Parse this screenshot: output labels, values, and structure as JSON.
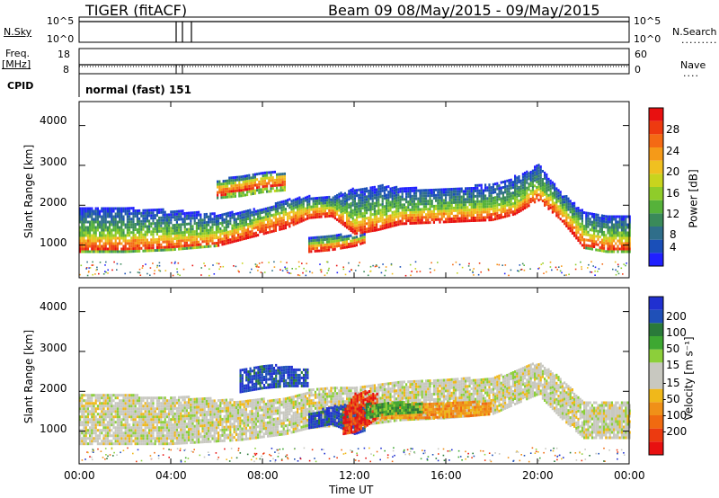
{
  "header": {
    "station_title": "TIGER (fitACF)",
    "beam_date": "Beam 09  08/May/2015 - 09/May/2015"
  },
  "summary_panels": {
    "nsky": {
      "label": "N.Sky",
      "ticks": [
        "10^5",
        "10^0"
      ],
      "ticks_right": [
        "10^5",
        "10^0"
      ],
      "right_label": "N.Search"
    },
    "freq": {
      "label_lines": [
        "Freq.",
        "[MHz]"
      ],
      "ticks": [
        "18",
        "8"
      ],
      "ticks_right": [
        "60",
        "0"
      ],
      "right_label": "Nave"
    },
    "cpid": {
      "label": "CPID",
      "mode_text": "normal (fast) 151"
    }
  },
  "colorbars": {
    "power": {
      "label": "Power [dB]",
      "ticks": [
        "28",
        "24",
        "20",
        "16",
        "12",
        "8",
        "4"
      ],
      "colors": [
        "#2020ff",
        "#1a4fb8",
        "#2f6e8a",
        "#3a8a5a",
        "#56b23a",
        "#8fcc2a",
        "#c8d41e",
        "#f0c020",
        "#f59a18",
        "#f46a14",
        "#ee3a10",
        "#e81010"
      ]
    },
    "velocity": {
      "label": "Velocity [m s⁻¹]",
      "ticks": [
        "200",
        "100",
        "50",
        "15",
        "-15",
        "-50",
        "-100",
        "-200"
      ],
      "colors": [
        "#2030d0",
        "#1f50b8",
        "#2a7a3a",
        "#3ea832",
        "#8ccf3a",
        "#c8c8c0",
        "#c8c8c0",
        "#f0b81a",
        "#f09018",
        "#f06a10",
        "#ec3a10",
        "#e81010"
      ]
    }
  },
  "chart_data": [
    {
      "type": "heatmap",
      "panel": "power",
      "ylabel": "Slant Range [km]",
      "yticks": [
        "4000",
        "3000",
        "2000",
        "1000"
      ],
      "ylim": [
        180,
        4600
      ],
      "xlim": [
        0,
        24
      ],
      "bands": [
        {
          "x": [
            0,
            2,
            4,
            6,
            8,
            9,
            10,
            11,
            12,
            13,
            14,
            16,
            18,
            19,
            20,
            21,
            22,
            23,
            24
          ],
          "lower": [
            800,
            800,
            850,
            950,
            1250,
            1400,
            1650,
            1700,
            1250,
            1350,
            1500,
            1550,
            1600,
            1750,
            2100,
            1600,
            900,
            800,
            800
          ],
          "upper": [
            1900,
            1900,
            1850,
            1750,
            1900,
            2100,
            2200,
            2200,
            2400,
            2500,
            2400,
            2400,
            2500,
            2700,
            3000,
            2300,
            1800,
            1700,
            1700
          ],
          "core_lower": [
            800,
            820,
            860,
            950,
            1250,
            1400,
            1650,
            1700,
            1250,
            1350,
            1500,
            1550,
            1600,
            1750,
            2100,
            1600,
            900,
            820,
            800
          ],
          "core_upper": [
            1200,
            1200,
            1200,
            1250,
            1600,
            1800,
            1900,
            1900,
            1600,
            1700,
            1800,
            1850,
            1900,
            2000,
            2400,
            1900,
            1300,
            1150,
            1150
          ]
        },
        {
          "x": [
            10,
            11,
            12,
            12.5
          ],
          "lower": [
            800,
            850,
            950,
            1050
          ],
          "upper": [
            1150,
            1250,
            1200,
            1250
          ],
          "core_lower": [
            800,
            850,
            950,
            1050
          ],
          "core_upper": [
            1000,
            1050,
            1100,
            1150
          ]
        },
        {
          "x": [
            6,
            7,
            8,
            9
          ],
          "lower": [
            2150,
            2200,
            2300,
            2350
          ],
          "upper": [
            2600,
            2700,
            2800,
            2800
          ],
          "core_lower": [
            2200,
            2300,
            2400,
            2450
          ],
          "core_upper": [
            2450,
            2550,
            2650,
            2700
          ]
        }
      ]
    },
    {
      "type": "heatmap",
      "panel": "velocity",
      "ylabel": "Slant Range [km]",
      "yticks": [
        "4000",
        "3000",
        "2000",
        "1000"
      ],
      "ylim": [
        180,
        4600
      ],
      "xlim": [
        0,
        24
      ],
      "xticks": [
        "00:00",
        "04:00",
        "08:00",
        "12:00",
        "16:00",
        "20:00",
        "00:00"
      ],
      "xlabel": "Time UT",
      "regions": [
        {
          "x": [
            0,
            4,
            7,
            9,
            10,
            11,
            12,
            14,
            16,
            18,
            20,
            21,
            22,
            24
          ],
          "lower": [
            650,
            650,
            750,
            900,
            1050,
            1100,
            1100,
            1250,
            1300,
            1400,
            1900,
            1300,
            800,
            800
          ],
          "upper": [
            1900,
            1850,
            1750,
            1800,
            2000,
            2100,
            2100,
            2200,
            2300,
            2300,
            2700,
            2300,
            1700,
            1700
          ],
          "tone": "low"
        },
        {
          "x": [
            7,
            8,
            9,
            10
          ],
          "lower": [
            1950,
            2050,
            2100,
            2100
          ],
          "upper": [
            2500,
            2650,
            2600,
            2500
          ],
          "tone": "pos"
        },
        {
          "x": [
            10,
            11,
            12,
            12.5
          ],
          "lower": [
            1050,
            1150,
            900,
            1000
          ],
          "upper": [
            1400,
            1600,
            1650,
            1600
          ],
          "tone": "pos"
        },
        {
          "x": [
            11.5,
            12,
            12.5,
            13
          ],
          "lower": [
            900,
            950,
            1100,
            1300
          ],
          "upper": [
            1500,
            1900,
            2000,
            1900
          ],
          "tone": "neg"
        },
        {
          "x": [
            13,
            15,
            17,
            18
          ],
          "lower": [
            1300,
            1300,
            1350,
            1400
          ],
          "upper": [
            1700,
            1700,
            1700,
            1700
          ],
          "tone": "mid-neg"
        },
        {
          "x": [
            12.5,
            13.5,
            15
          ],
          "lower": [
            1300,
            1400,
            1450
          ],
          "upper": [
            1650,
            1700,
            1700
          ],
          "tone": "mid-pos"
        }
      ]
    }
  ]
}
